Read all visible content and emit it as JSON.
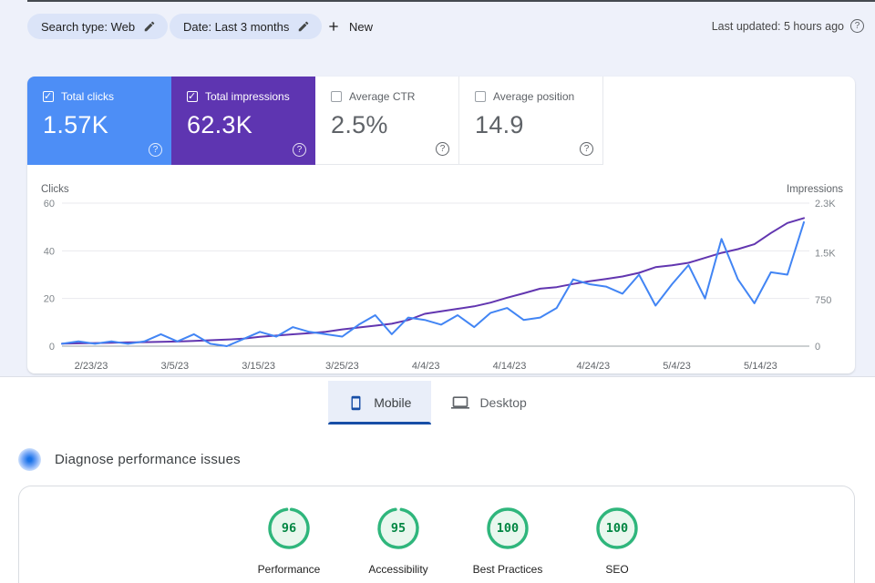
{
  "gsc": {
    "background": "#eef1fa",
    "chips": [
      {
        "label": "Search type: Web",
        "icon": "pencil-icon"
      },
      {
        "label": "Date: Last 3 months",
        "icon": "pencil-icon"
      }
    ],
    "new_button": {
      "label": "New",
      "icon": "plus-icon"
    },
    "last_updated": "Last updated: 5 hours ago",
    "metrics": [
      {
        "label": "Total clicks",
        "value": "1.57K",
        "checked": true,
        "bg": "#4d8ef6"
      },
      {
        "label": "Total impressions",
        "value": "62.3K",
        "checked": true,
        "bg": "#5e35b1"
      },
      {
        "label": "Average CTR",
        "value": "2.5%",
        "checked": false,
        "bg": "#ffffff"
      },
      {
        "label": "Average position",
        "value": "14.9",
        "checked": false,
        "bg": "#ffffff"
      }
    ]
  },
  "chart_data": {
    "type": "line",
    "x_labels": [
      "2/23/23",
      "3/5/23",
      "3/15/23",
      "3/25/23",
      "4/4/23",
      "4/14/23",
      "4/24/23",
      "5/4/23",
      "5/14/23"
    ],
    "left_axis": {
      "label": "Clicks",
      "ticks": [
        0,
        20,
        40,
        60
      ],
      "max": 60
    },
    "right_axis": {
      "label": "Impressions",
      "ticks": [
        0,
        750,
        1500,
        2300
      ],
      "tick_labels": [
        "0",
        "750",
        "1.5K",
        "2.3K"
      ],
      "max": 2300
    },
    "grid": true,
    "series": [
      {
        "name": "Total impressions",
        "axis": "right",
        "color": "#6236b0",
        "values": [
          40,
          45,
          50,
          55,
          60,
          65,
          70,
          75,
          85,
          95,
          105,
          120,
          150,
          170,
          190,
          210,
          230,
          270,
          300,
          330,
          360,
          420,
          520,
          560,
          600,
          640,
          700,
          780,
          850,
          925,
          950,
          1000,
          1045,
          1080,
          1120,
          1180,
          1270,
          1300,
          1340,
          1420,
          1500,
          1560,
          1640,
          1820,
          1980,
          2060
        ]
      },
      {
        "name": "Total clicks",
        "axis": "left",
        "color": "#4285f4",
        "values": [
          1,
          2,
          1,
          2,
          1,
          2,
          5,
          2,
          5,
          1,
          0,
          3,
          6,
          4,
          8,
          6,
          5,
          4,
          9,
          13,
          5,
          12,
          11,
          9,
          13,
          8,
          14,
          16,
          11,
          12,
          16,
          28,
          26,
          25,
          22,
          30,
          17,
          26,
          34,
          20,
          45,
          28,
          18,
          31,
          30,
          52
        ]
      }
    ]
  },
  "psi": {
    "tabs": [
      {
        "label": "Mobile",
        "icon": "smartphone-icon",
        "selected": true
      },
      {
        "label": "Desktop",
        "icon": "laptop-icon",
        "selected": false
      }
    ],
    "heading": "Diagnose performance issues",
    "score_colors": {
      "ring": "#2fb67c",
      "fill": "#e9f7ee",
      "text": "#018642"
    },
    "scores": [
      {
        "label": "Performance",
        "value": 96
      },
      {
        "label": "Accessibility",
        "value": 95
      },
      {
        "label": "Best Practices",
        "value": 100
      },
      {
        "label": "SEO",
        "value": 100
      }
    ]
  }
}
